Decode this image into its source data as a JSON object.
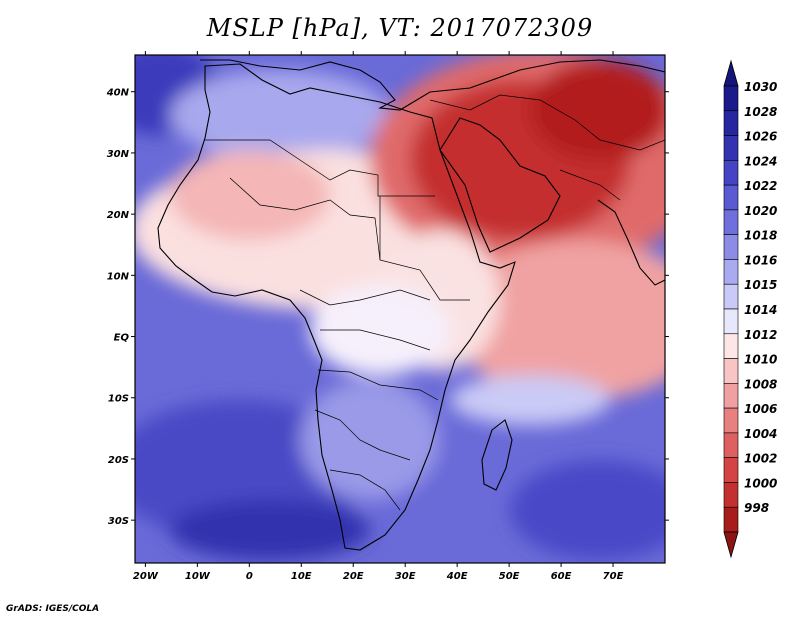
{
  "title": "MSLP [hPa], VT: 2017072309",
  "credit": "GrADS: IGES/COLA",
  "map": {
    "lon_range": [
      -22,
      80
    ],
    "lat_range": [
      -37,
      46
    ],
    "lon_ticks": [
      {
        "value": -20,
        "label": "20W"
      },
      {
        "value": -10,
        "label": "10W"
      },
      {
        "value": 0,
        "label": "0"
      },
      {
        "value": 10,
        "label": "10E"
      },
      {
        "value": 20,
        "label": "20E"
      },
      {
        "value": 30,
        "label": "30E"
      },
      {
        "value": 40,
        "label": "40E"
      },
      {
        "value": 50,
        "label": "50E"
      },
      {
        "value": 60,
        "label": "60E"
      },
      {
        "value": 70,
        "label": "70E"
      }
    ],
    "lat_ticks": [
      {
        "value": 40,
        "label": "40N"
      },
      {
        "value": 30,
        "label": "30N"
      },
      {
        "value": 20,
        "label": "20N"
      },
      {
        "value": 10,
        "label": "10N"
      },
      {
        "value": 0,
        "label": "EQ"
      },
      {
        "value": -10,
        "label": "10S"
      },
      {
        "value": -20,
        "label": "20S"
      },
      {
        "value": -30,
        "label": "30S"
      }
    ]
  },
  "colorbar": {
    "levels": [
      {
        "label": "1030",
        "color": "#1a1a8c"
      },
      {
        "label": "1028",
        "color": "#2626a0"
      },
      {
        "label": "1026",
        "color": "#3333b2"
      },
      {
        "label": "1024",
        "color": "#4444c4"
      },
      {
        "label": "1022",
        "color": "#5a5ad2"
      },
      {
        "label": "1020",
        "color": "#7070dc"
      },
      {
        "label": "1018",
        "color": "#8c8ce6"
      },
      {
        "label": "1016",
        "color": "#aaaaf0"
      },
      {
        "label": "1015",
        "color": "#cacaf8"
      },
      {
        "label": "1014",
        "color": "#e8e8fc"
      },
      {
        "label": "1012",
        "color": "#fde6e6"
      },
      {
        "label": "1010",
        "color": "#f8c4c4"
      },
      {
        "label": "1008",
        "color": "#f0a0a0"
      },
      {
        "label": "1006",
        "color": "#e88080"
      },
      {
        "label": "1004",
        "color": "#de6060"
      },
      {
        "label": "1002",
        "color": "#d44444"
      },
      {
        "label": "1000",
        "color": "#c43030"
      },
      {
        "label": "998",
        "color": "#a81c1c"
      }
    ],
    "top_color": "#14147a",
    "bottom_color": "#8c1414"
  }
}
